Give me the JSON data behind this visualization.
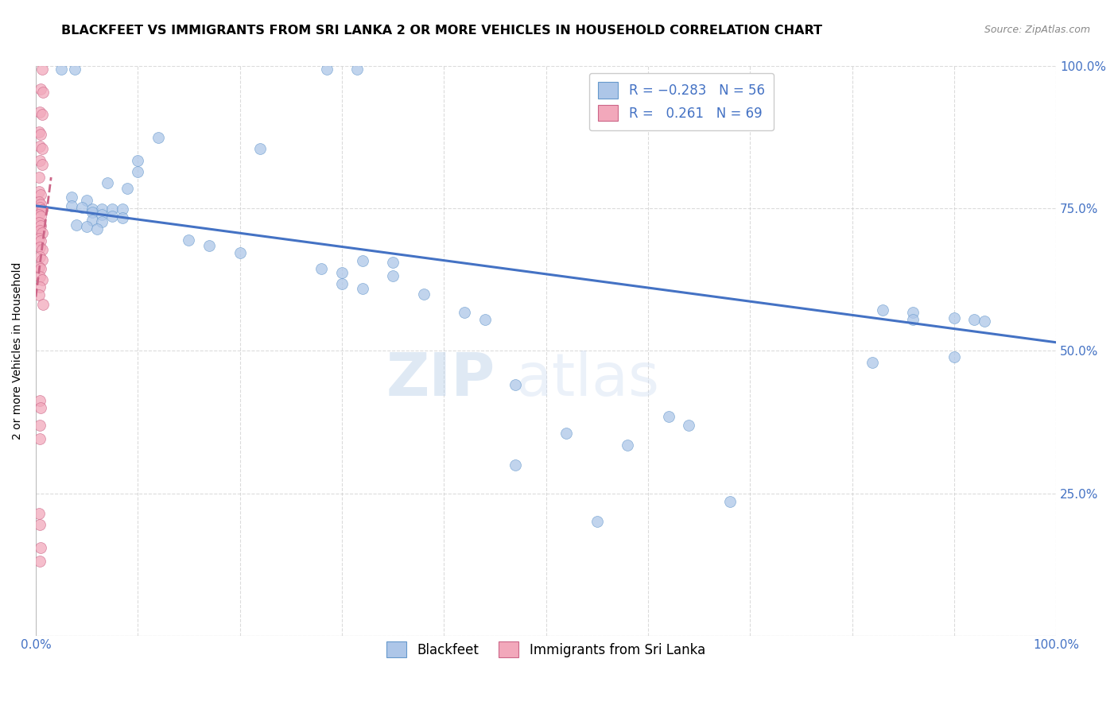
{
  "title": "BLACKFEET VS IMMIGRANTS FROM SRI LANKA 2 OR MORE VEHICLES IN HOUSEHOLD CORRELATION CHART",
  "source": "Source: ZipAtlas.com",
  "ylabel": "2 or more Vehicles in Household",
  "xlim": [
    0.0,
    1.0
  ],
  "ylim": [
    0.0,
    1.0
  ],
  "blue_color": "#adc6e8",
  "pink_color": "#f2a8bb",
  "blue_edge_color": "#6699cc",
  "pink_edge_color": "#cc6688",
  "blue_line_color": "#4472c4",
  "pink_line_color": "#cc6688",
  "axis_label_color": "#4472c4",
  "watermark": "ZIPatlas",
  "blue_scatter": [
    [
      0.025,
      0.995
    ],
    [
      0.038,
      0.995
    ],
    [
      0.285,
      0.995
    ],
    [
      0.315,
      0.995
    ],
    [
      0.12,
      0.875
    ],
    [
      0.22,
      0.855
    ],
    [
      0.1,
      0.835
    ],
    [
      0.1,
      0.815
    ],
    [
      0.07,
      0.795
    ],
    [
      0.09,
      0.785
    ],
    [
      0.035,
      0.77
    ],
    [
      0.05,
      0.765
    ],
    [
      0.035,
      0.755
    ],
    [
      0.045,
      0.752
    ],
    [
      0.055,
      0.749
    ],
    [
      0.065,
      0.749
    ],
    [
      0.075,
      0.749
    ],
    [
      0.085,
      0.749
    ],
    [
      0.055,
      0.743
    ],
    [
      0.065,
      0.74
    ],
    [
      0.075,
      0.737
    ],
    [
      0.085,
      0.734
    ],
    [
      0.055,
      0.73
    ],
    [
      0.065,
      0.727
    ],
    [
      0.04,
      0.722
    ],
    [
      0.05,
      0.719
    ],
    [
      0.06,
      0.715
    ],
    [
      0.15,
      0.695
    ],
    [
      0.17,
      0.685
    ],
    [
      0.2,
      0.672
    ],
    [
      0.32,
      0.658
    ],
    [
      0.35,
      0.655
    ],
    [
      0.28,
      0.645
    ],
    [
      0.3,
      0.638
    ],
    [
      0.35,
      0.632
    ],
    [
      0.3,
      0.618
    ],
    [
      0.32,
      0.61
    ],
    [
      0.38,
      0.6
    ],
    [
      0.42,
      0.568
    ],
    [
      0.44,
      0.555
    ],
    [
      0.83,
      0.572
    ],
    [
      0.86,
      0.568
    ],
    [
      0.86,
      0.555
    ],
    [
      0.9,
      0.558
    ],
    [
      0.92,
      0.555
    ],
    [
      0.93,
      0.552
    ],
    [
      0.47,
      0.44
    ],
    [
      0.52,
      0.355
    ],
    [
      0.58,
      0.335
    ],
    [
      0.62,
      0.385
    ],
    [
      0.64,
      0.37
    ],
    [
      0.68,
      0.235
    ],
    [
      0.82,
      0.48
    ],
    [
      0.9,
      0.49
    ],
    [
      0.47,
      0.3
    ],
    [
      0.55,
      0.2
    ]
  ],
  "pink_scatter": [
    [
      0.006,
      0.995
    ],
    [
      0.005,
      0.96
    ],
    [
      0.007,
      0.955
    ],
    [
      0.004,
      0.92
    ],
    [
      0.006,
      0.915
    ],
    [
      0.003,
      0.885
    ],
    [
      0.005,
      0.88
    ],
    [
      0.004,
      0.86
    ],
    [
      0.006,
      0.855
    ],
    [
      0.004,
      0.835
    ],
    [
      0.006,
      0.828
    ],
    [
      0.003,
      0.805
    ],
    [
      0.003,
      0.78
    ],
    [
      0.005,
      0.775
    ],
    [
      0.003,
      0.762
    ],
    [
      0.005,
      0.758
    ],
    [
      0.004,
      0.752
    ],
    [
      0.006,
      0.748
    ],
    [
      0.003,
      0.74
    ],
    [
      0.005,
      0.736
    ],
    [
      0.003,
      0.725
    ],
    [
      0.005,
      0.72
    ],
    [
      0.004,
      0.712
    ],
    [
      0.006,
      0.708
    ],
    [
      0.003,
      0.698
    ],
    [
      0.005,
      0.694
    ],
    [
      0.004,
      0.682
    ],
    [
      0.006,
      0.678
    ],
    [
      0.004,
      0.665
    ],
    [
      0.006,
      0.66
    ],
    [
      0.003,
      0.648
    ],
    [
      0.005,
      0.644
    ],
    [
      0.004,
      0.63
    ],
    [
      0.006,
      0.625
    ],
    [
      0.004,
      0.612
    ],
    [
      0.003,
      0.598
    ],
    [
      0.007,
      0.582
    ],
    [
      0.004,
      0.412
    ],
    [
      0.005,
      0.4
    ],
    [
      0.004,
      0.37
    ],
    [
      0.004,
      0.345
    ],
    [
      0.003,
      0.215
    ],
    [
      0.004,
      0.195
    ],
    [
      0.005,
      0.155
    ],
    [
      0.004,
      0.13
    ]
  ],
  "blue_trendline": [
    [
      0.0,
      0.755
    ],
    [
      1.0,
      0.515
    ]
  ],
  "pink_trendline_x": [
    0.0,
    0.015
  ],
  "pink_trendline_y": [
    0.595,
    0.805
  ]
}
